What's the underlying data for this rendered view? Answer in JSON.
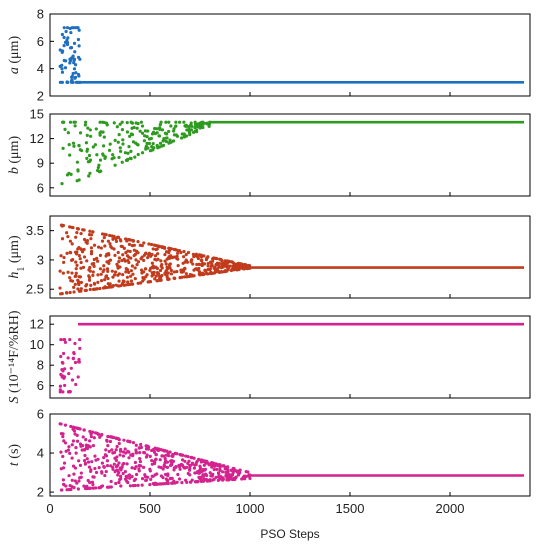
{
  "chart_data": {
    "type": "scatter",
    "title": "",
    "xlabel": "PSO Steps",
    "xlim": [
      0,
      2400
    ],
    "xticks": [
      0,
      500,
      1000,
      1500,
      2000
    ],
    "panels": [
      {
        "key": "a",
        "ylabel_var": "a",
        "ylabel_sub": "",
        "ylabel_unit": " (μm)",
        "color": "#1f6fc0",
        "ylim": [
          2,
          8
        ],
        "yticks": [
          2,
          4,
          6,
          8
        ],
        "converged_value": 3.0,
        "converge_step": 140,
        "exploration": {
          "x_range": [
            50,
            150
          ],
          "y_range": [
            3.3,
            7.0
          ],
          "count": 70,
          "band_min": [
            3.0,
            3.0
          ],
          "band_max": [
            7.0,
            7.0
          ]
        }
      },
      {
        "key": "b",
        "ylabel_var": "b",
        "ylabel_sub": "",
        "ylabel_unit": " (μm)",
        "color": "#2e9a1f",
        "ylim": [
          5,
          15
        ],
        "yticks": [
          6,
          9,
          12,
          15
        ],
        "converged_value": 14.0,
        "converge_step": 800,
        "exploration": {
          "x_range": [
            50,
            800
          ],
          "y_range": [
            6.0,
            14.0
          ],
          "count": 240,
          "band_min": [
            6.0,
            13.5
          ],
          "band_max": [
            14.0,
            14.0
          ]
        }
      },
      {
        "key": "h1",
        "ylabel_var": "h",
        "ylabel_sub": "1",
        "ylabel_unit": " (μm)",
        "color": "#c23b1d",
        "ylim": [
          2.35,
          3.75
        ],
        "yticks": [
          2.5,
          3.0,
          3.5
        ],
        "converged_value": 2.87,
        "converge_step": 1000,
        "exploration": {
          "x_range": [
            50,
            1000
          ],
          "y_range": [
            2.42,
            3.6
          ],
          "count": 620,
          "band_min": [
            2.42,
            2.86
          ],
          "band_max": [
            3.6,
            2.9
          ]
        }
      },
      {
        "key": "S",
        "ylabel_var": "S",
        "ylabel_sub": "",
        "ylabel_unit": " (10⁻¹⁴F/%RH)",
        "color": "#d4228e",
        "ylim": [
          4.8,
          12.8
        ],
        "yticks": [
          6,
          8,
          10,
          12
        ],
        "converged_value": 12.0,
        "converge_step": 140,
        "exploration": {
          "x_range": [
            50,
            150
          ],
          "y_range": [
            5.4,
            10.5
          ],
          "count": 45,
          "band_min": [
            5.4,
            5.4
          ],
          "band_max": [
            10.5,
            10.5
          ]
        }
      },
      {
        "key": "t",
        "ylabel_var": "t",
        "ylabel_sub": "",
        "ylabel_unit": " (s)",
        "color": "#d4228e",
        "ylim": [
          1.8,
          6
        ],
        "yticks": [
          2,
          4,
          6
        ],
        "converged_value": 2.85,
        "converge_step": 1000,
        "exploration": {
          "x_range": [
            50,
            1000
          ],
          "y_range": [
            2.1,
            5.5
          ],
          "count": 600,
          "band_min": [
            2.1,
            2.7
          ],
          "band_max": [
            5.5,
            3.0
          ]
        }
      }
    ]
  }
}
